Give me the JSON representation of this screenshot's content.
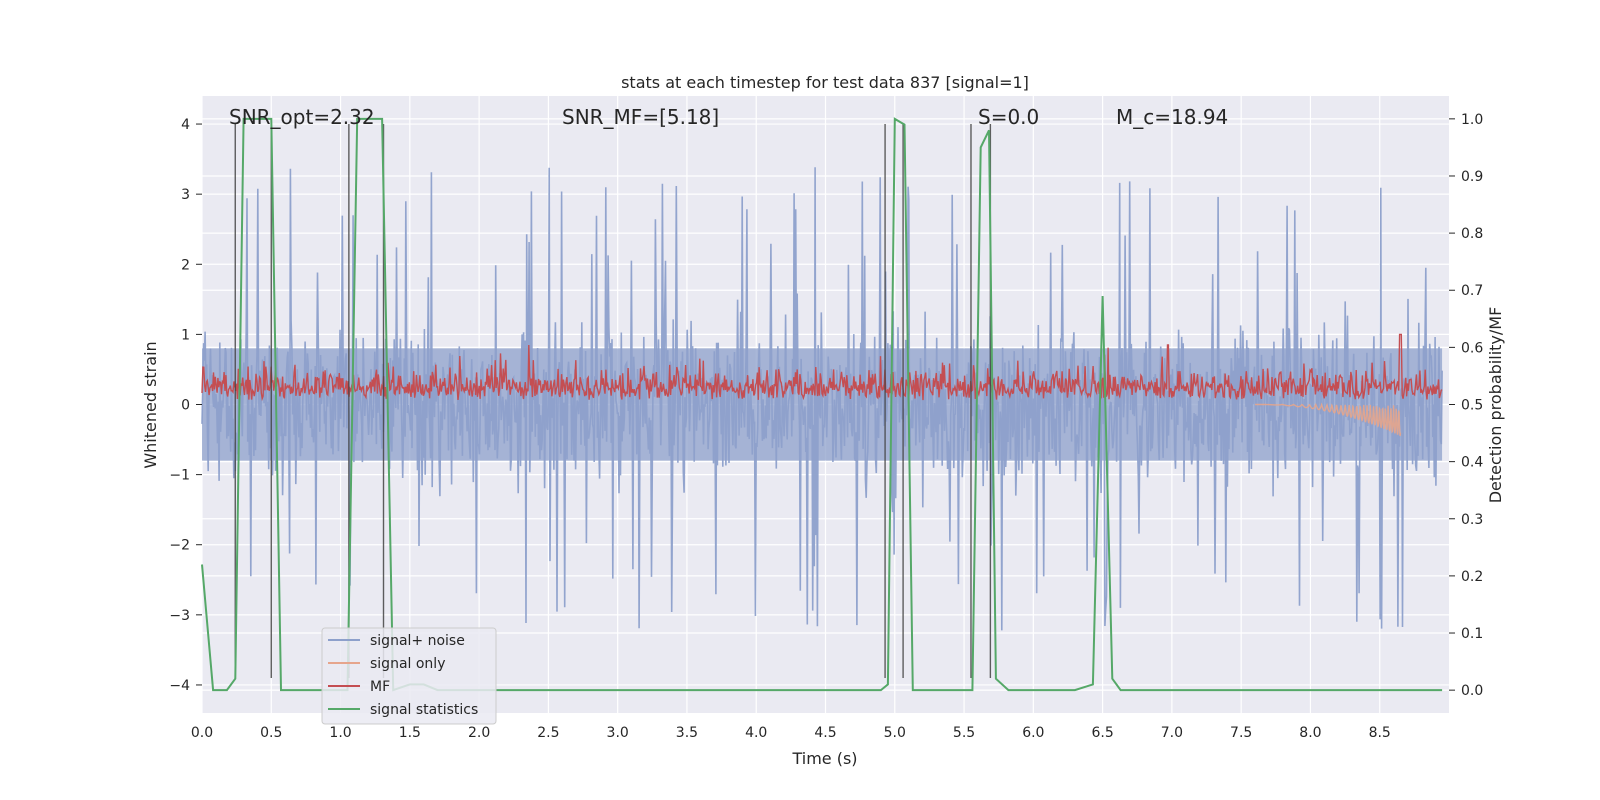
{
  "chart_data": {
    "type": "line",
    "title": "stats at each timestep for test data 837 [signal=1]",
    "xlabel": "Time (s)",
    "ylabel": "Whitened strain",
    "y2label": "Detection probability/MF",
    "xlim": [
      0.0,
      9.0
    ],
    "ylim": [
      -4.4,
      4.4
    ],
    "y2lim": [
      -0.04,
      1.04
    ],
    "grid": true,
    "legend_position": "lower-left",
    "x_ticks": [
      "0.0",
      "0.5",
      "1.0",
      "1.5",
      "2.0",
      "2.5",
      "3.0",
      "3.5",
      "4.0",
      "4.5",
      "5.0",
      "5.5",
      "6.0",
      "6.5",
      "7.0",
      "7.5",
      "8.0",
      "8.5"
    ],
    "y_ticks": [
      "4",
      "3",
      "2",
      "1",
      "0",
      "−1",
      "−2",
      "−3",
      "−4"
    ],
    "y2_ticks": [
      "1.0",
      "0.9",
      "0.8",
      "0.7",
      "0.6",
      "0.5",
      "0.4",
      "0.3",
      "0.2",
      "0.1",
      "0.0"
    ],
    "annotations": [
      {
        "text": "SNR_opt=2.32",
        "x": 0.19,
        "y": 4.1
      },
      {
        "text": "SNR_MF=[5.18]",
        "x": 2.6,
        "y": 4.1
      },
      {
        "text": "S=0.0",
        "x": 5.6,
        "y": 4.1
      },
      {
        "text": "M_c=18.94",
        "x": 6.6,
        "y": 4.1
      }
    ],
    "series": [
      {
        "name": "signal+ noise",
        "color": "#8da0cb",
        "kind": "noise",
        "mean_abs": 0.8,
        "peak_max": 3.9,
        "peak_min": -3.9
      },
      {
        "name": "signal only",
        "color": "#e6a58c",
        "kind": "chirp",
        "t_merge": 8.65,
        "amp_max": -0.45
      },
      {
        "name": "MF",
        "color": "#c44e52",
        "kind": "mf",
        "baseline": 0.05,
        "mean": 0.3,
        "peaks": [
          {
            "x": 6.97,
            "y": 0.85
          },
          {
            "x": 8.65,
            "y": 1.0
          }
        ]
      },
      {
        "name": "signal statistics",
        "color": "#55a868",
        "axis": "right",
        "x": [
          0.0,
          0.08,
          0.18,
          0.24,
          0.3,
          0.5,
          0.57,
          0.8,
          1.0,
          1.05,
          1.12,
          1.3,
          1.38,
          1.5,
          1.6,
          1.7,
          2.0,
          3.0,
          4.0,
          4.9,
          4.95,
          5.0,
          5.07,
          5.13,
          5.3,
          5.5,
          5.56,
          5.62,
          5.68,
          5.73,
          5.82,
          6.0,
          6.3,
          6.43,
          6.5,
          6.57,
          6.63,
          6.8,
          7.0,
          7.5,
          8.0,
          8.5,
          8.95
        ],
        "y": [
          0.22,
          0.0,
          0.0,
          0.02,
          1.0,
          1.0,
          0.0,
          0.0,
          0.0,
          0.0,
          1.0,
          1.0,
          0.0,
          0.01,
          0.01,
          0.0,
          0.0,
          0.0,
          0.0,
          0.0,
          0.01,
          1.0,
          0.99,
          0.0,
          0.0,
          0.0,
          0.0,
          0.95,
          0.98,
          0.02,
          0.0,
          0.0,
          0.0,
          0.01,
          0.69,
          0.02,
          0.0,
          0.0,
          0.0,
          0.0,
          0.0,
          0.0,
          0.0
        ]
      }
    ],
    "vlines": [
      0.24,
      0.5,
      1.06,
      1.31,
      4.93,
      5.06,
      5.55,
      5.69
    ]
  }
}
